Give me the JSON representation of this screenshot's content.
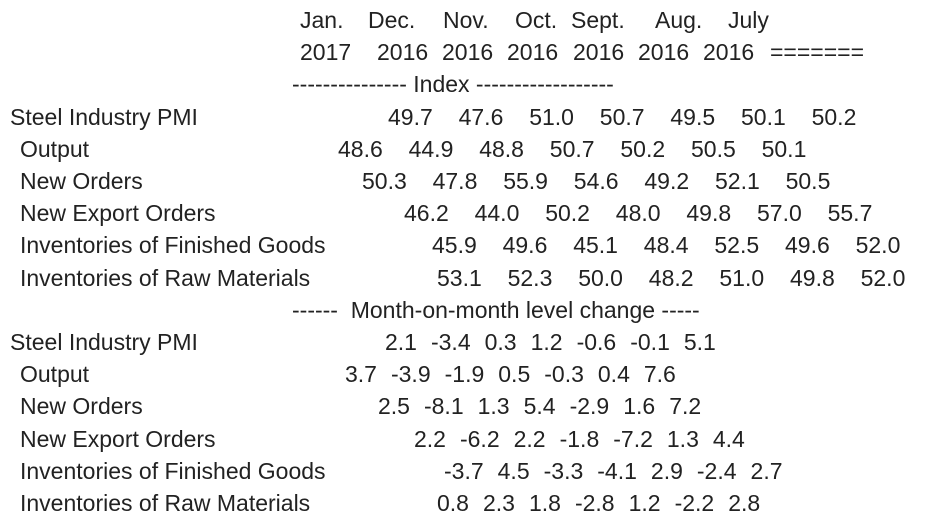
{
  "header": {
    "months": [
      "Jan.",
      "Dec.",
      "Nov.",
      "Oct.",
      "Sept.",
      "Aug.",
      "July"
    ],
    "years": [
      "2017",
      "2016",
      "2016",
      "2016",
      "2016",
      "2016",
      "2016"
    ],
    "trailer": "=======",
    "index_heading": "--------------- Index ------------------",
    "change_heading": "------  Month-on-month level change -----"
  },
  "index_rows": [
    {
      "label": "Steel Industry PMI",
      "values": [
        "49.7",
        "47.6",
        "51.0",
        "50.7",
        "49.5",
        "50.1",
        "50.2"
      ]
    },
    {
      "label": "Output",
      "values": [
        "48.6",
        "44.9",
        "48.8",
        "50.7",
        "50.2",
        "50.5",
        "50.1"
      ]
    },
    {
      "label": "New Orders",
      "values": [
        "50.3",
        "47.8",
        "55.9",
        "54.6",
        "49.2",
        "52.1",
        "50.5"
      ]
    },
    {
      "label": "New Export Orders",
      "values": [
        "46.2",
        "44.0",
        "50.2",
        "48.0",
        "49.8",
        "57.0",
        "55.7"
      ]
    },
    {
      "label": "Inventories of Finished Goods",
      "values": [
        "45.9",
        "49.6",
        "45.1",
        "48.4",
        "52.5",
        "49.6",
        "52.0"
      ]
    },
    {
      "label": "Inventories of Raw Materials",
      "values": [
        "53.1",
        "52.3",
        "50.0",
        "48.2",
        "51.0",
        "49.8",
        "52.0"
      ]
    }
  ],
  "change_rows": [
    {
      "label": "Steel Industry PMI",
      "values": [
        "2.1",
        "-3.4",
        "0.3",
        "1.2",
        "-0.6",
        "-0.1",
        "5.1"
      ]
    },
    {
      "label": "Output",
      "values": [
        "3.7",
        "-3.9",
        "-1.9",
        "0.5",
        "-0.3",
        "0.4",
        "7.6"
      ]
    },
    {
      "label": "New Orders",
      "values": [
        "2.5",
        "-8.1",
        "1.3",
        "5.4",
        "-2.9",
        "1.6",
        "7.2"
      ]
    },
    {
      "label": "New Export Orders",
      "values": [
        "2.2",
        "-6.2",
        "2.2",
        "-1.8",
        "-7.2",
        "1.3",
        "4.4"
      ]
    },
    {
      "label": "Inventories of Finished Goods",
      "values": [
        "-3.7",
        "4.5",
        "-3.3",
        "-4.1",
        "2.9",
        "-2.4",
        "2.7"
      ]
    },
    {
      "label": "Inventories of Raw Materials",
      "values": [
        "0.8",
        "2.3",
        "1.8",
        "-2.8",
        "1.2",
        "-2.2",
        "2.8"
      ]
    }
  ]
}
